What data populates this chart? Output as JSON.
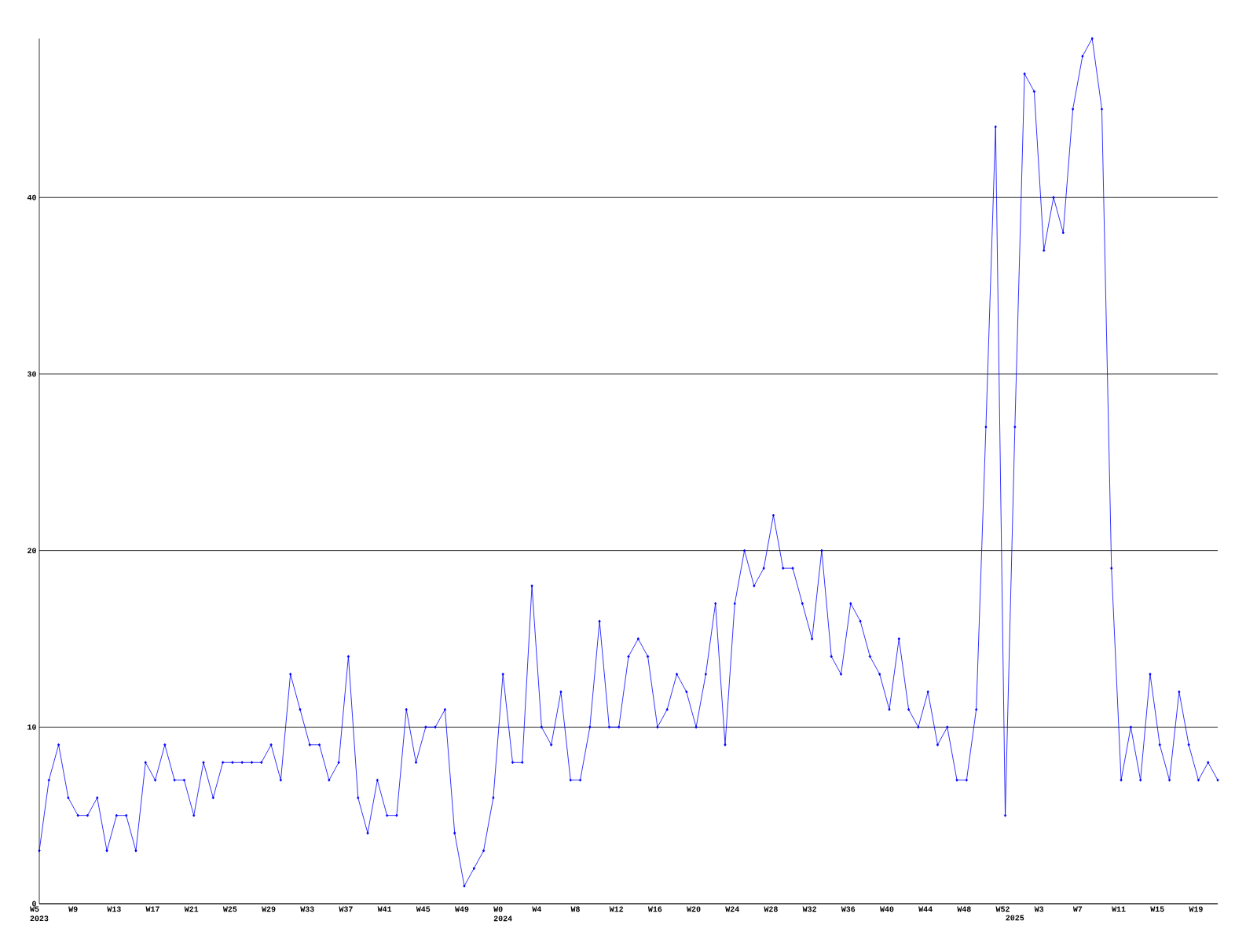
{
  "chart_data": {
    "type": "line",
    "categories": [
      "W5 2023",
      null,
      null,
      null,
      "W9",
      null,
      null,
      null,
      "W13",
      null,
      null,
      null,
      "W17",
      null,
      null,
      null,
      "W21",
      null,
      null,
      null,
      "W25",
      null,
      null,
      null,
      "W29",
      null,
      null,
      null,
      "W33",
      null,
      null,
      null,
      "W37",
      null,
      null,
      null,
      "W41",
      null,
      null,
      null,
      "W45",
      null,
      null,
      null,
      "W49",
      null,
      null,
      null,
      "W0 2024",
      null,
      null,
      null,
      "W4",
      null,
      null,
      null,
      "W8",
      null,
      null,
      null,
      "W12",
      null,
      null,
      null,
      "W16",
      null,
      null,
      null,
      "W20",
      null,
      null,
      null,
      "W24",
      null,
      null,
      null,
      "W28",
      null,
      null,
      null,
      "W32",
      null,
      null,
      null,
      "W36",
      null,
      null,
      null,
      "W40",
      null,
      null,
      null,
      "W44",
      null,
      null,
      null,
      "W48",
      null,
      null,
      null,
      "W52",
      "2025",
      null,
      null,
      "W3",
      null,
      null,
      null,
      "W7",
      null,
      null,
      null,
      "W11",
      null,
      null,
      null,
      "W15",
      null,
      null,
      null,
      "W19",
      null,
      null
    ],
    "series": [
      {
        "color": "#0000ff",
        "values": [
          3,
          7,
          9,
          6,
          5,
          5,
          6,
          3,
          5,
          5,
          3,
          8,
          7,
          9,
          7,
          7,
          5,
          8,
          6,
          8,
          8,
          8,
          8,
          8,
          9,
          7,
          13,
          11,
          9,
          9,
          7,
          8,
          14,
          6,
          4,
          7,
          5,
          5,
          11,
          8,
          10,
          10,
          11,
          4,
          1,
          2,
          3,
          6,
          13,
          8,
          8,
          18,
          10,
          9,
          12,
          7,
          7,
          10,
          16,
          10,
          10,
          14,
          15,
          14,
          10,
          11,
          13,
          12,
          10,
          13,
          17,
          9,
          17,
          20,
          18,
          19,
          22,
          19,
          19,
          17,
          15,
          20,
          14,
          13,
          17,
          16,
          14,
          13,
          11,
          15,
          11,
          10,
          12,
          9,
          10,
          7,
          7,
          11,
          27,
          44,
          5,
          27,
          47,
          46,
          37,
          40,
          38,
          45,
          48,
          49,
          45,
          19,
          7,
          10,
          7,
          13,
          9,
          7,
          12,
          9,
          7,
          8,
          7
        ]
      }
    ],
    "ylim": [
      0,
      49
    ],
    "yticks": [
      0,
      10,
      20,
      30,
      40
    ],
    "grid": "y",
    "marker": "diamond",
    "line_style": "solid"
  }
}
